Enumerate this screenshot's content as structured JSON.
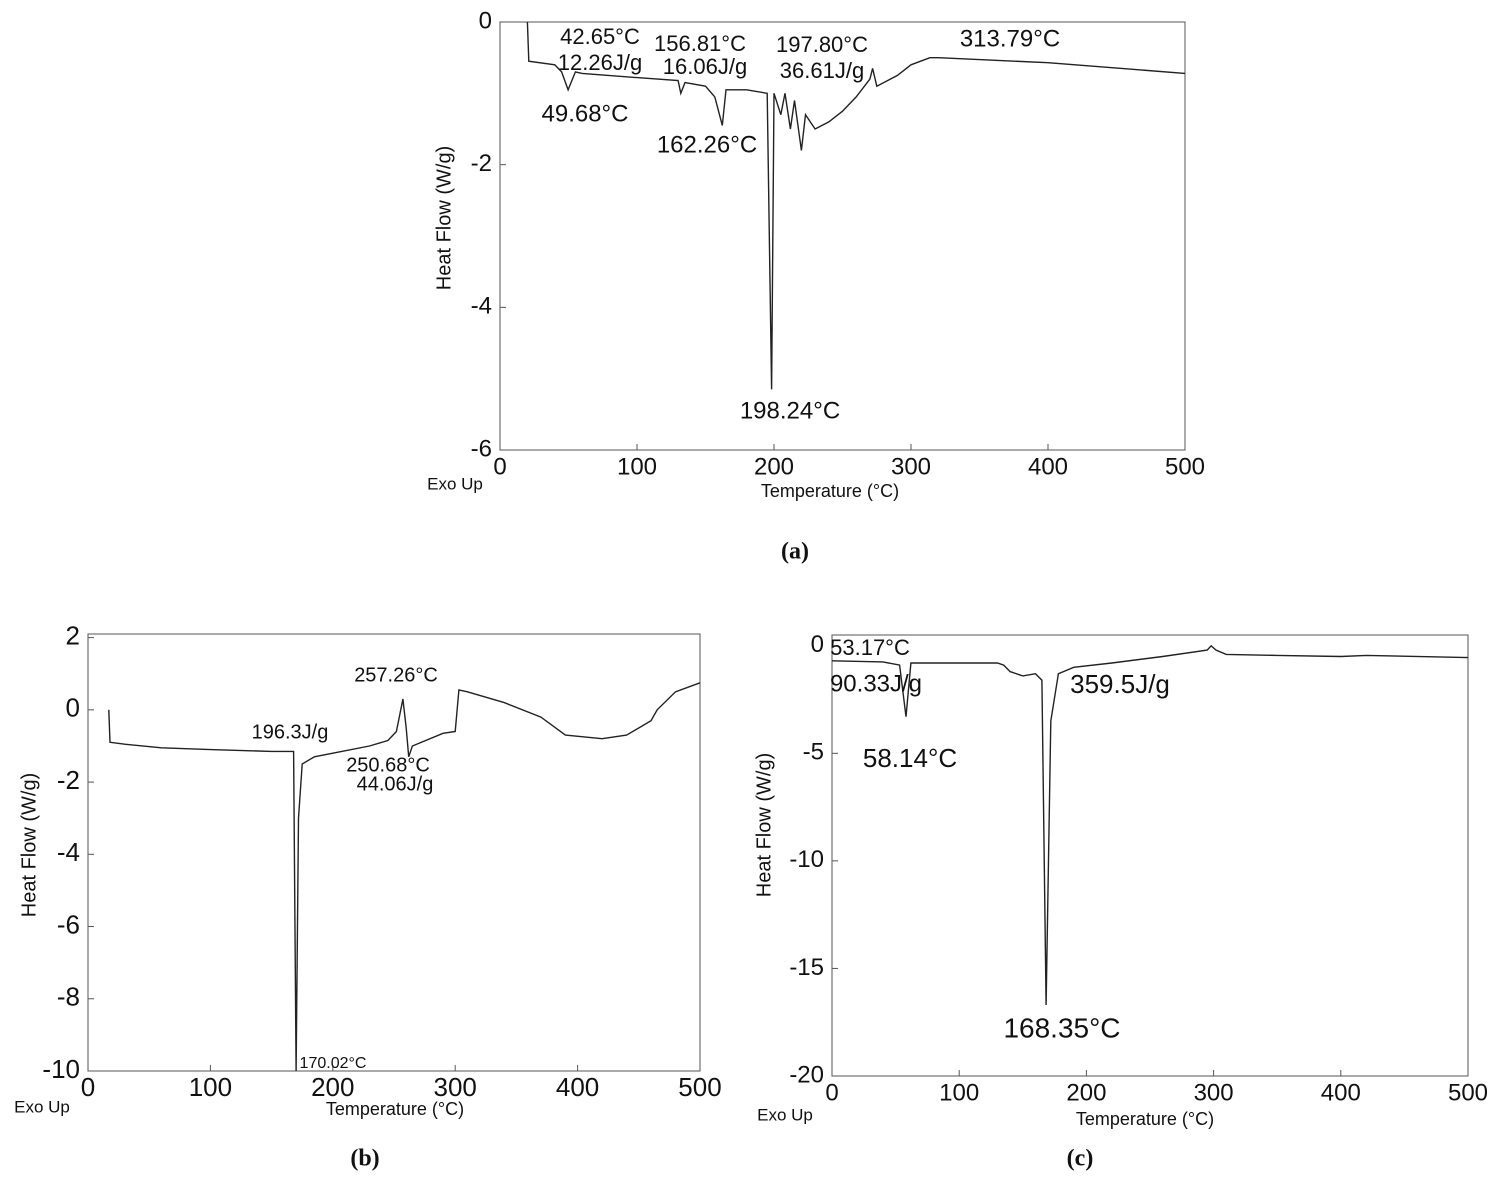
{
  "chart_data": [
    {
      "type": "line",
      "caption": "(a)",
      "xlabel": "Temperature (°C)",
      "ylabel": "Heat Flow (W/g)",
      "corner_label": "Exo Up",
      "xlim": [
        0,
        500
      ],
      "ylim": [
        -6,
        0
      ],
      "xticks": [
        0,
        100,
        200,
        300,
        400,
        500
      ],
      "yticks": [
        0,
        -2,
        -4,
        -6
      ],
      "grid": false,
      "color": "#222222",
      "x": [
        20,
        21,
        40,
        45,
        49.68,
        55,
        60,
        100,
        130,
        132,
        135,
        150,
        156.81,
        162.26,
        165,
        180,
        195,
        198.24,
        200,
        205,
        208,
        212,
        215,
        220,
        223,
        230,
        240,
        250,
        260,
        270,
        272,
        275,
        290,
        300,
        313.79,
        320,
        400,
        500
      ],
      "values": [
        0,
        -0.55,
        -0.6,
        -0.7,
        -0.95,
        -0.7,
        -0.72,
        -0.78,
        -0.82,
        -1.0,
        -0.85,
        -0.9,
        -1.05,
        -1.45,
        -0.95,
        -0.95,
        -1.0,
        -5.15,
        -1.0,
        -1.3,
        -1.0,
        -1.5,
        -1.1,
        -1.8,
        -1.3,
        -1.5,
        -1.4,
        -1.25,
        -1.05,
        -0.8,
        -0.65,
        -0.9,
        -0.75,
        -0.6,
        -0.5,
        -0.5,
        -0.57,
        -0.72
      ],
      "annotations": [
        "42.65°C",
        "12.26J/g",
        "49.68°C",
        "156.81°C",
        "16.06J/g",
        "162.26°C",
        "197.80°C",
        "36.61J/g",
        "198.24°C",
        "313.79°C"
      ]
    },
    {
      "type": "line",
      "caption": "(b)",
      "xlabel": "Temperature (°C)",
      "ylabel": "Heat Flow (W/g)",
      "corner_label": "Exo Up",
      "xlim": [
        0,
        500
      ],
      "ylim": [
        -10,
        2.1
      ],
      "xticks": [
        0,
        100,
        200,
        300,
        400,
        500
      ],
      "yticks": [
        2,
        0,
        -2,
        -4,
        -6,
        -8,
        -10
      ],
      "grid": false,
      "color": "#222222",
      "x": [
        17,
        18,
        30,
        60,
        100,
        150,
        168,
        170.02,
        172,
        175,
        185,
        200,
        230,
        245,
        252,
        257.26,
        260,
        262,
        265,
        290,
        300,
        303,
        310,
        340,
        370,
        390,
        420,
        440,
        460,
        465,
        480,
        500
      ],
      "values": [
        0,
        -0.9,
        -0.95,
        -1.05,
        -1.1,
        -1.15,
        -1.15,
        -10,
        -3,
        -1.5,
        -1.3,
        -1.2,
        -1.0,
        -0.85,
        -0.6,
        0.3,
        -0.5,
        -1.3,
        -1.0,
        -0.65,
        -0.6,
        0.55,
        0.5,
        0.2,
        -0.2,
        -0.7,
        -0.8,
        -0.7,
        -0.3,
        0.0,
        0.5,
        0.75
      ],
      "annotations": [
        "257.26°C",
        "196.3J/g",
        "250.68°C",
        "44.06J/g",
        "170.02°C"
      ]
    },
    {
      "type": "line",
      "caption": "(c)",
      "xlabel": "Temperature (°C)",
      "ylabel": "Heat Flow (W/g)",
      "corner_label": "Exo Up",
      "xlim": [
        0,
        500
      ],
      "ylim": [
        -20,
        0.5
      ],
      "xticks": [
        0,
        100,
        200,
        300,
        400,
        500
      ],
      "yticks": [
        0,
        -5,
        -10,
        -15,
        -20
      ],
      "grid": false,
      "color": "#222222",
      "x": [
        0,
        40,
        53.17,
        58.14,
        62,
        130,
        135,
        140,
        150,
        160,
        165,
        168.35,
        172,
        178,
        190,
        220,
        260,
        295,
        298,
        302,
        310,
        350,
        400,
        420,
        500
      ],
      "values": [
        -0.7,
        -0.75,
        -0.9,
        -3.3,
        -0.8,
        -0.8,
        -0.9,
        -1.2,
        -1.4,
        -1.3,
        -1.6,
        -16.7,
        -3.5,
        -1.3,
        -1.0,
        -0.8,
        -0.5,
        -0.2,
        0.0,
        -0.2,
        -0.4,
        -0.45,
        -0.5,
        -0.45,
        -0.55
      ],
      "annotations": [
        "53.17°C",
        "90.33J/g",
        "359.5J/g",
        "58.14°C",
        "168.35°C"
      ]
    }
  ]
}
